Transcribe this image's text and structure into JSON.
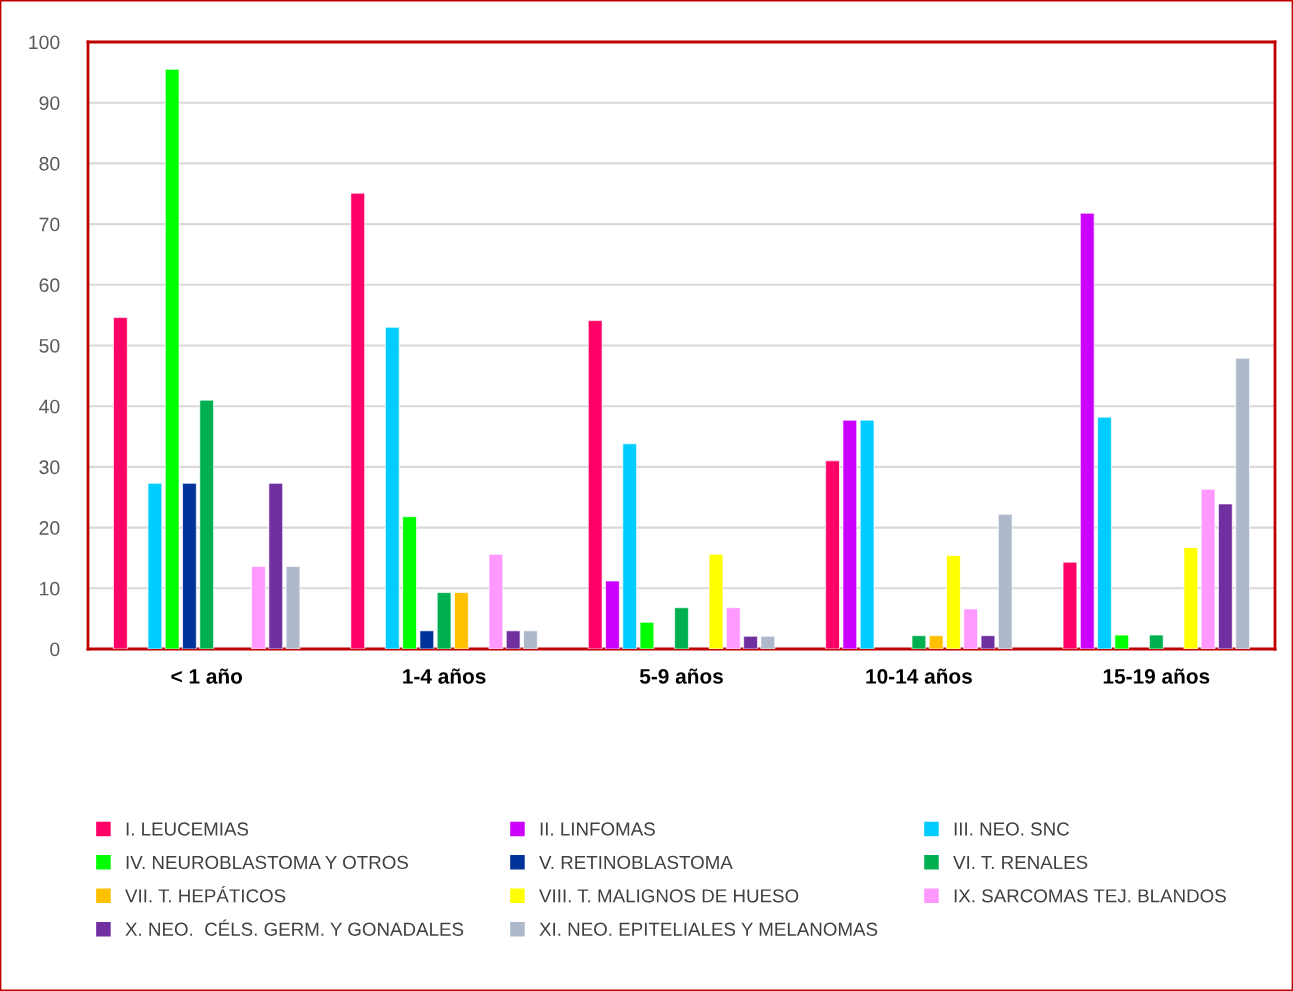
{
  "chart_data": {
    "type": "bar",
    "categories": [
      "< 1 año",
      "1-4 años",
      "5-9 años",
      "10-14 años",
      "15-19 años"
    ],
    "ylim": [
      0,
      100
    ],
    "yticks": [
      0,
      10,
      20,
      30,
      40,
      50,
      60,
      70,
      80,
      90,
      100
    ],
    "grid": "y",
    "legend": "bottom",
    "series": [
      {
        "name": "I. LEUCEMIAS",
        "color": "#ff0066",
        "values": [
          54.6,
          75.1,
          54.1,
          31,
          14.3
        ]
      },
      {
        "name": "II. LINFOMAS",
        "color": "#cc00ff",
        "values": [
          null,
          null,
          11.2,
          37.7,
          71.8
        ]
      },
      {
        "name": "III. NEO. SNC",
        "color": "#00ccff",
        "values": [
          27.3,
          53,
          33.8,
          37.7,
          38.2
        ]
      },
      {
        "name": "IV. NEUROBLASTOMA Y OTROS",
        "color": "#00ff00",
        "values": [
          95.5,
          21.8,
          4.4,
          null,
          2.3
        ]
      },
      {
        "name": "V. RETINOBLASTOMA",
        "color": "#003399",
        "values": [
          27.3,
          3,
          null,
          null,
          null
        ]
      },
      {
        "name": "VI. T. RENALES",
        "color": "#00b050",
        "values": [
          41,
          9.3,
          6.8,
          2.2,
          2.3
        ]
      },
      {
        "name": "VII. T. HEPÁTICOS",
        "color": "#ffc000",
        "values": [
          null,
          9.3,
          null,
          2.2,
          null
        ]
      },
      {
        "name": "VIII. T. MALIGNOS DE HUESO",
        "color": "#ffff00",
        "values": [
          null,
          null,
          15.6,
          15.4,
          16.7
        ]
      },
      {
        "name": "IX. SARCOMAS TEJ. BLANDOS",
        "color": "#ff99ff",
        "values": [
          13.6,
          15.6,
          6.8,
          6.6,
          26.3
        ]
      },
      {
        "name": "X. NEO.  CÉLS. GERM. Y GONADALES",
        "color": "#7030a0",
        "values": [
          27.3,
          3,
          2.1,
          2.2,
          23.9
        ]
      },
      {
        "name": "XI. NEO. EPITELIALES Y MELANOMAS",
        "color": "#adb9ca",
        "values": [
          13.6,
          3,
          2.1,
          22.2,
          47.9
        ]
      }
    ]
  }
}
